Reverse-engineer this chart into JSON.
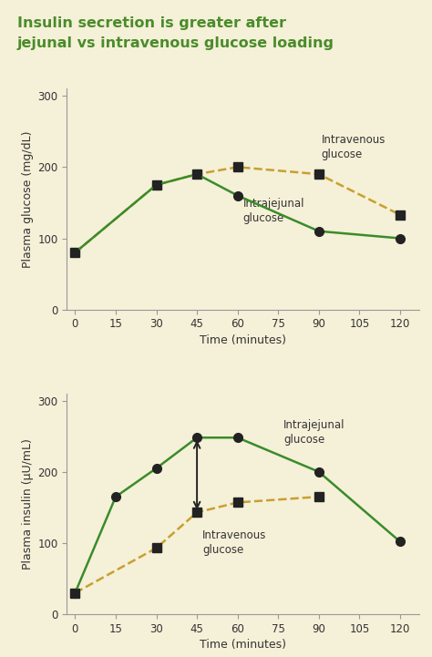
{
  "title_line1": "Insulin secretion is greater after",
  "title_line2": "jejunal vs intravenous glucose loading",
  "title_color": "#4a8c2a",
  "bg_color": "#f5f0d8",
  "green_color": "#3a8c2a",
  "gold_color": "#c8a030",
  "marker_color": "#222222",
  "iv_time_g": [
    0,
    30,
    45,
    60,
    90,
    120
  ],
  "iv_vals_g": [
    80,
    175,
    190,
    200,
    190,
    133
  ],
  "jej_time_g": [
    0,
    30,
    45,
    60,
    90,
    120
  ],
  "jej_vals_g": [
    80,
    175,
    190,
    160,
    110,
    100
  ],
  "iv_time_i": [
    0,
    30,
    45,
    60,
    90
  ],
  "iv_vals_i": [
    30,
    93,
    143,
    157,
    165
  ],
  "jej_time_i": [
    0,
    15,
    30,
    45,
    60,
    90,
    120
  ],
  "jej_vals_i": [
    30,
    165,
    205,
    248,
    248,
    200,
    102
  ],
  "glucose_ylabel": "Plasma glucose (mg/dL)",
  "insulin_ylabel": "Plasma insulin (μU/mL)",
  "xlabel": "Time (minutes)",
  "ylim": [
    0,
    310
  ],
  "yticks": [
    0,
    100,
    200,
    300
  ],
  "xticks": [
    0,
    15,
    30,
    45,
    60,
    75,
    90,
    105,
    120
  ],
  "xlim": [
    -3,
    127
  ]
}
